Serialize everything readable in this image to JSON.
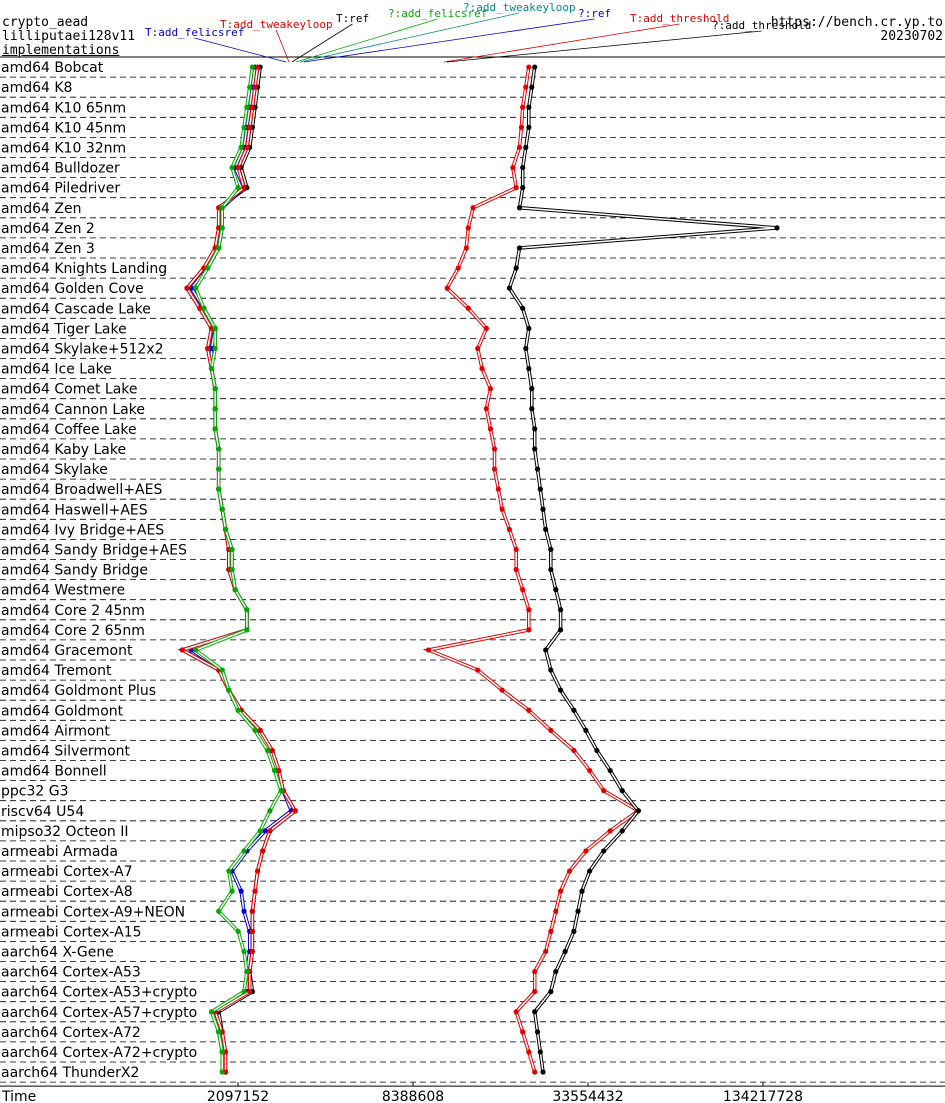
{
  "header": {
    "line1": "crypto_aead",
    "line2": "lilliputaei128v11",
    "line3": "implementations",
    "url": "https://bench.cr.yp.to",
    "date": "20230702"
  },
  "colors": {
    "black": "#000000",
    "red": "#e00000",
    "blue": "#0000cc",
    "green": "#00aa00",
    "teal": "#008888"
  },
  "chart_data": {
    "type": "line",
    "xlabel": "Time",
    "x_scale": "log",
    "x_ticks": [
      "2097152",
      "8388608",
      "33554432",
      "134217728"
    ],
    "categories": [
      "amd64 Bobcat",
      "amd64 K8",
      "amd64 K10 65nm",
      "amd64 K10 45nm",
      "amd64 K10 32nm",
      "amd64 Bulldozer",
      "amd64 Piledriver",
      "amd64 Zen",
      "amd64 Zen 2",
      "amd64 Zen 3",
      "amd64 Knights Landing",
      "amd64 Golden Cove",
      "amd64 Cascade Lake",
      "amd64 Tiger Lake",
      "amd64 Skylake+512x2",
      "amd64 Ice Lake",
      "amd64 Comet Lake",
      "amd64 Cannon Lake",
      "amd64 Coffee Lake",
      "amd64 Kaby Lake",
      "amd64 Skylake",
      "amd64 Broadwell+AES",
      "amd64 Haswell+AES",
      "amd64 Ivy Bridge+AES",
      "amd64 Sandy Bridge+AES",
      "amd64 Sandy Bridge",
      "amd64 Westmere",
      "amd64 Core 2 45nm",
      "amd64 Core 2 65nm",
      "amd64 Gracemont",
      "amd64 Tremont",
      "amd64 Goldmont Plus",
      "amd64 Goldmont",
      "amd64 Airmont",
      "amd64 Silvermont",
      "amd64 Bonnell",
      "ppc32 G3",
      "riscv64 U54",
      "mipso32 Octeon II",
      "armeabi Armada",
      "armeabi Cortex-A7",
      "armeabi Cortex-A8",
      "armeabi Cortex-A9+NEON",
      "armeabi Cortex-A15",
      "aarch64 X-Gene",
      "aarch64 Cortex-A53",
      "aarch64 Cortex-A53+crypto",
      "aarch64 Cortex-A57+crypto",
      "aarch64 Cortex-A72",
      "aarch64 Cortex-A72+crypto",
      "aarch64 ThunderX2"
    ],
    "legend": [
      {
        "name": "T:add_felicsref",
        "color": "#0000cc"
      },
      {
        "name": "T:add_tweakeyloop",
        "color": "#e00000"
      },
      {
        "name": "T:ref",
        "color": "#000000"
      },
      {
        "name": "?:add_felicsref",
        "color": "#00aa00"
      },
      {
        "name": "?:add_tweakeyloop",
        "color": "#008888"
      },
      {
        "name": "?:ref",
        "color": "#0000cc"
      },
      {
        "name": "T:add_threshold",
        "color": "#e00000"
      },
      {
        "name": "?:add_threshold",
        "color": "#000000"
      }
    ],
    "series": [
      {
        "name": "T:ref",
        "color": "#000000",
        "values": [
          2500000,
          2450000,
          2400000,
          2350000,
          2300000,
          2150000,
          2250000,
          1800000,
          1800000,
          1750000,
          1600000,
          1400000,
          1550000,
          1700000,
          1650000,
          1700000,
          1750000,
          1750000,
          1750000,
          1800000,
          1800000,
          1800000,
          1850000,
          1900000,
          1950000,
          1950000,
          2050000,
          2250000,
          2250000,
          1350000,
          1800000,
          1950000,
          2150000,
          2500000,
          2750000,
          2900000,
          3000000,
          3300000,
          2700000,
          2550000,
          2450000,
          2400000,
          2350000,
          2350000,
          2350000,
          2300000,
          2350000,
          1800000,
          1850000,
          1900000,
          1900000
        ]
      },
      {
        "name": "T:add_felicsref",
        "color": "#0000cc",
        "values": [
          2400000,
          2350000,
          2300000,
          2250000,
          2200000,
          2050000,
          2200000,
          1850000,
          1850000,
          1800000,
          1650000,
          1450000,
          1600000,
          1750000,
          1700000,
          1700000,
          1750000,
          1750000,
          1750000,
          1800000,
          1800000,
          1800000,
          1850000,
          1900000,
          2000000,
          2000000,
          2050000,
          2250000,
          2250000,
          1450000,
          1850000,
          1950000,
          2100000,
          2450000,
          2700000,
          2850000,
          3000000,
          3200000,
          2600000,
          2250000,
          2000000,
          2150000,
          2200000,
          2300000,
          2300000,
          2250000,
          2250000,
          1750000,
          1800000,
          1850000,
          1900000
        ]
      },
      {
        "name": "T:add_tweakeyloop",
        "color": "#e00000",
        "values": [
          2450000,
          2400000,
          2350000,
          2300000,
          2250000,
          2100000,
          2200000,
          1800000,
          1800000,
          1750000,
          1600000,
          1400000,
          1550000,
          1700000,
          1650000,
          1700000,
          1750000,
          1750000,
          1750000,
          1800000,
          1800000,
          1800000,
          1850000,
          1900000,
          1950000,
          1950000,
          2050000,
          2250000,
          2250000,
          1350000,
          1800000,
          1950000,
          2150000,
          2500000,
          2750000,
          2900000,
          3000000,
          3300000,
          2700000,
          2550000,
          2450000,
          2400000,
          2350000,
          2350000,
          2350000,
          2300000,
          2300000,
          1750000,
          1850000,
          1900000,
          1900000
        ]
      },
      {
        "name": "?:add_felicsref",
        "color": "#00aa00",
        "values": [
          2350000,
          2300000,
          2250000,
          2200000,
          2150000,
          2000000,
          2100000,
          1850000,
          1850000,
          1800000,
          1650000,
          1500000,
          1600000,
          1750000,
          1750000,
          1700000,
          1750000,
          1750000,
          1750000,
          1800000,
          1800000,
          1800000,
          1850000,
          1900000,
          2000000,
          2000000,
          2050000,
          2250000,
          2250000,
          1500000,
          1850000,
          1950000,
          2100000,
          2400000,
          2650000,
          2800000,
          2950000,
          2700000,
          2500000,
          2200000,
          1950000,
          2000000,
          1800000,
          2100000,
          2200000,
          2250000,
          2200000,
          1700000,
          1800000,
          1850000,
          1850000
        ]
      },
      {
        "name": "T:add_threshold",
        "color": "#e00000",
        "values": [
          21000000,
          20500000,
          20000000,
          19800000,
          19500000,
          18500000,
          19000000,
          13500000,
          13000000,
          12800000,
          12000000,
          11000000,
          13000000,
          15000000,
          14000000,
          14500000,
          15500000,
          15000000,
          15500000,
          16000000,
          16000000,
          16500000,
          17000000,
          18000000,
          19000000,
          19000000,
          20000000,
          21000000,
          21000000,
          9500000,
          14000000,
          17000000,
          21000000,
          25000000,
          30000000,
          34000000,
          38000000,
          50000000,
          40000000,
          33000000,
          29000000,
          27000000,
          26000000,
          25000000,
          24000000,
          22000000,
          22000000,
          19000000,
          20000000,
          21000000,
          22000000
        ]
      },
      {
        "name": "?:add_threshold",
        "color": "#000000",
        "values": [
          22000000,
          21500000,
          21000000,
          21000000,
          20500000,
          20000000,
          20000000,
          19500000,
          150000000,
          19500000,
          19000000,
          18000000,
          20000000,
          21000000,
          20500000,
          21000000,
          21500000,
          21500000,
          22000000,
          22000000,
          22500000,
          23000000,
          23500000,
          24000000,
          25000000,
          25000000,
          26000000,
          27000000,
          27000000,
          24000000,
          25000000,
          27000000,
          30000000,
          33000000,
          36000000,
          40000000,
          44000000,
          50000000,
          44000000,
          38000000,
          34000000,
          32000000,
          31000000,
          30000000,
          28000000,
          26000000,
          25000000,
          22000000,
          22500000,
          23000000,
          23500000
        ]
      }
    ]
  }
}
